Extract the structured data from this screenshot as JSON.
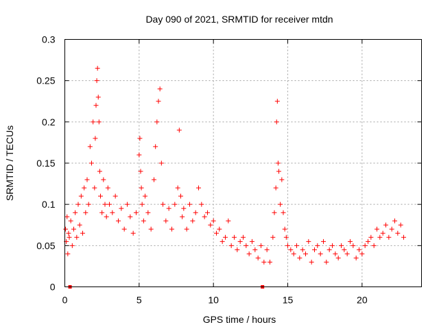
{
  "chart_data": {
    "type": "scatter",
    "title": "Day 090 of 2021, SRMTID for receiver mtdn",
    "xlabel": "GPS time / hours",
    "ylabel": "SRMTID / TECUs",
    "xlim": [
      0,
      24
    ],
    "ylim": [
      0,
      0.3
    ],
    "xticks": [
      0,
      5,
      10,
      15,
      20
    ],
    "xtick_labels": [
      "0",
      "5",
      "10",
      "15",
      "20"
    ],
    "yticks": [
      0,
      0.05,
      0.1,
      0.15,
      0.2,
      0.25,
      0.3
    ],
    "ytick_labels": [
      "0",
      "0.05",
      "0.1",
      "0.15",
      "0.2",
      "0.25",
      "0.3"
    ],
    "grid": true,
    "marker": "+",
    "color": "#ff0000",
    "series": [
      {
        "name": "SRMTID",
        "x": [
          0.05,
          0.1,
          0.15,
          0.2,
          0.25,
          0.3,
          0.4,
          0.5,
          0.6,
          0.7,
          0.8,
          0.9,
          1.0,
          1.1,
          1.2,
          1.3,
          1.4,
          1.5,
          1.6,
          1.7,
          1.8,
          1.9,
          2.0,
          2.05,
          2.1,
          2.15,
          2.2,
          2.25,
          2.3,
          2.35,
          2.4,
          2.5,
          2.6,
          2.7,
          2.8,
          2.9,
          3.0,
          3.2,
          3.4,
          3.6,
          3.8,
          4.0,
          4.2,
          4.4,
          4.6,
          4.8,
          5.0,
          5.05,
          5.1,
          5.15,
          5.2,
          5.3,
          5.4,
          5.6,
          5.8,
          6.0,
          6.1,
          6.2,
          6.3,
          6.4,
          6.5,
          6.6,
          6.8,
          7.0,
          7.2,
          7.4,
          7.6,
          7.7,
          7.8,
          7.9,
          8.0,
          8.2,
          8.4,
          8.6,
          8.8,
          9.0,
          9.2,
          9.4,
          9.6,
          9.8,
          10.0,
          10.2,
          10.4,
          10.6,
          10.8,
          11.0,
          11.2,
          11.4,
          11.6,
          11.8,
          12.0,
          12.2,
          12.4,
          12.6,
          12.8,
          13.0,
          13.2,
          13.4,
          13.6,
          13.8,
          14.0,
          14.1,
          14.2,
          14.25,
          14.3,
          14.35,
          14.4,
          14.5,
          14.6,
          14.7,
          14.8,
          14.9,
          15.0,
          15.2,
          15.4,
          15.6,
          15.8,
          16.0,
          16.2,
          16.4,
          16.6,
          16.8,
          17.0,
          17.2,
          17.4,
          17.6,
          17.8,
          18.0,
          18.2,
          18.4,
          18.6,
          18.8,
          19.0,
          19.2,
          19.4,
          19.6,
          19.8,
          20.0,
          20.2,
          20.4,
          20.6,
          20.8,
          21.0,
          21.2,
          21.4,
          21.6,
          21.8,
          22.0,
          22.2,
          22.4,
          22.6,
          22.8
        ],
        "y": [
          0.07,
          0.055,
          0.085,
          0.04,
          0.065,
          0.06,
          0.08,
          0.05,
          0.07,
          0.09,
          0.06,
          0.1,
          0.075,
          0.11,
          0.065,
          0.12,
          0.09,
          0.13,
          0.1,
          0.17,
          0.15,
          0.2,
          0.12,
          0.18,
          0.22,
          0.25,
          0.265,
          0.23,
          0.2,
          0.14,
          0.11,
          0.09,
          0.13,
          0.1,
          0.085,
          0.12,
          0.1,
          0.09,
          0.11,
          0.08,
          0.095,
          0.07,
          0.1,
          0.085,
          0.065,
          0.09,
          0.16,
          0.18,
          0.14,
          0.12,
          0.1,
          0.08,
          0.11,
          0.09,
          0.07,
          0.13,
          0.17,
          0.2,
          0.225,
          0.24,
          0.15,
          0.1,
          0.08,
          0.095,
          0.07,
          0.1,
          0.12,
          0.19,
          0.11,
          0.085,
          0.095,
          0.07,
          0.1,
          0.08,
          0.09,
          0.12,
          0.1,
          0.085,
          0.09,
          0.075,
          0.08,
          0.065,
          0.07,
          0.055,
          0.06,
          0.08,
          0.05,
          0.06,
          0.045,
          0.055,
          0.06,
          0.05,
          0.04,
          0.055,
          0.045,
          0.035,
          0.05,
          0.03,
          0.045,
          0.03,
          0.06,
          0.09,
          0.12,
          0.2,
          0.225,
          0.15,
          0.14,
          0.1,
          0.13,
          0.09,
          0.07,
          0.06,
          0.05,
          0.045,
          0.04,
          0.05,
          0.035,
          0.045,
          0.04,
          0.055,
          0.03,
          0.045,
          0.05,
          0.04,
          0.055,
          0.03,
          0.045,
          0.05,
          0.04,
          0.035,
          0.05,
          0.045,
          0.04,
          0.055,
          0.05,
          0.035,
          0.045,
          0.04,
          0.05,
          0.055,
          0.06,
          0.05,
          0.07,
          0.06,
          0.065,
          0.075,
          0.06,
          0.07,
          0.08,
          0.065,
          0.075,
          0.06
        ]
      }
    ],
    "zero_markers_x": [
      0.35,
      13.3
    ]
  }
}
